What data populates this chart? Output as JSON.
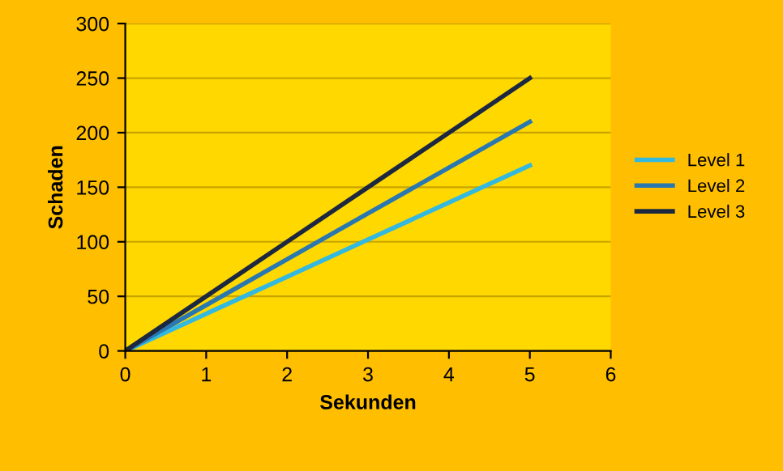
{
  "chart_data": {
    "type": "line",
    "xlabel": "Sekunden",
    "ylabel": "Schaden",
    "xlim": [
      0,
      6
    ],
    "xticks": [
      0,
      1,
      2,
      3,
      4,
      5,
      6
    ],
    "ylim": [
      0,
      300
    ],
    "yticks": [
      0,
      50,
      100,
      150,
      200,
      250,
      300
    ],
    "grid": "y",
    "legend": "right",
    "marker": "none",
    "line_style": "solid",
    "x": [
      0,
      1,
      2,
      3,
      4,
      5
    ],
    "series": [
      {
        "name": "Level 1",
        "color": "#33b8e0",
        "values": [
          0,
          34,
          68,
          102,
          136,
          170
        ]
      },
      {
        "name": "Level 2",
        "color": "#2a78b0",
        "values": [
          0,
          42,
          84,
          126,
          168,
          210
        ]
      },
      {
        "name": "Level 3",
        "color": "#1c2840",
        "values": [
          0,
          50,
          100,
          150,
          200,
          250
        ]
      }
    ]
  }
}
